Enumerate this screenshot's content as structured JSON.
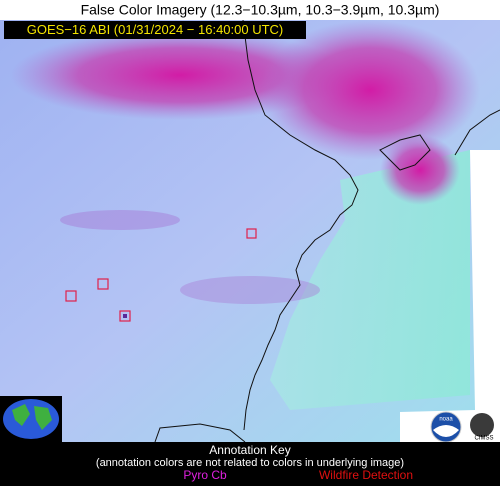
{
  "header": {
    "title": "False Color Imagery (12.3−10.3µm, 10.3−3.9µm, 10.3µm)",
    "subtitle": "GOES−16 ABI (01/31/2024 − 16:40:00 UTC)"
  },
  "key": {
    "title": "Annotation Key",
    "note": "(annotation colors are not related to colors in underlying image)",
    "items": [
      "Pyro Cb",
      "Wildfire Detection"
    ]
  },
  "logos": [
    "noaa",
    "CIMSS"
  ]
}
